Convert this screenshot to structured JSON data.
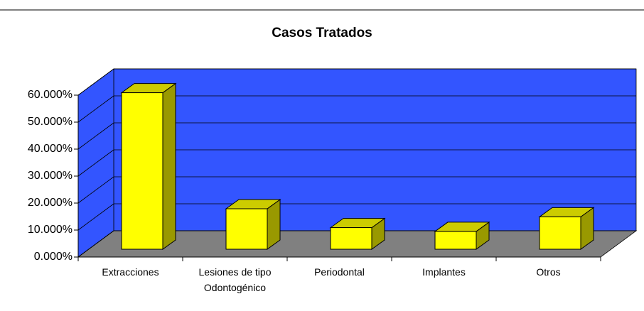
{
  "chart_data": {
    "type": "bar3d",
    "title": "Casos Tratados",
    "categories": [
      "Extracciones",
      "Lesiones de tipo Odontogénico",
      "Periodontal",
      "Implantes",
      "Otros"
    ],
    "values": [
      58,
      15,
      8,
      6.6,
      12
    ],
    "color": "#ffff00",
    "wall_color": "#3355ff",
    "floor_color": "#808080",
    "ylim": [
      0,
      60
    ],
    "yticks": [
      {
        "value": 0,
        "label": "0.000%"
      },
      {
        "value": 10,
        "label": "10.000%"
      },
      {
        "value": 20,
        "label": "20.000%"
      },
      {
        "value": 30,
        "label": "30.000%"
      },
      {
        "value": 40,
        "label": "40.000%"
      },
      {
        "value": 50,
        "label": "50.000%"
      },
      {
        "value": 60,
        "label": "60.000%"
      }
    ],
    "grid": true
  }
}
